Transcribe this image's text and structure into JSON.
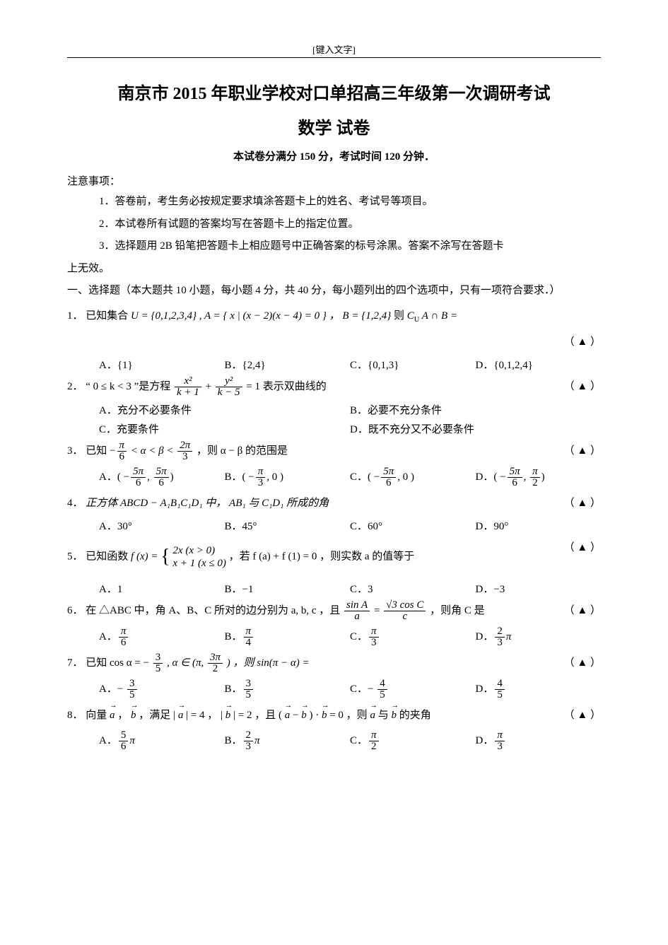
{
  "header": {
    "note": "[键入文字]"
  },
  "title": {
    "main": "南京市 2015 年职业学校对口单招高三年级第一次调研考试",
    "sub": "数学 试卷",
    "info": "本试卷分满分 150 分，考试时间 120 分钟．"
  },
  "notice": {
    "heading": "注意事项：",
    "lines": [
      "1．答卷前，考生务必按规定要求填涂答题卡上的姓名、考试号等项目。",
      "2．本试卷所有试题的答案均写在答题卡上的指定位置。",
      "3．选择题用 2B 铅笔把答题卡上相应题号中正确答案的标号涂黑。答案不涂写在答题卡"
    ],
    "cont": "上无效。"
  },
  "section": {
    "heading": "一、选择题（本大题共 10 小题，每小题 4 分，共 40 分，每小题列出的四个选项中，只有一项符合要求．）"
  },
  "marker": "（ ▲ ）",
  "q1": {
    "n": "1．",
    "pre": "已知集合",
    "set": "U = {0,1,2,3,4} , A = { x | (x − 2)(x − 4) = 0 } ，  B = {1,2,4}",
    "tail": " 则 ",
    "expr": "C_U A ∩ B =",
    "A": "A．{1}",
    "B": "B．{2,4}",
    "C": "C．{0,1,3}",
    "D": "D．{0,1,2,4}"
  },
  "q2": {
    "n": "2．",
    "pre": "“ 0 ≤ k < 3 ”是方程 ",
    "tail": " 表示双曲线的",
    "f1n": "x²",
    "f1d": "k + 1",
    "f2n": "y²",
    "f2d": "k − 5",
    "eq": " = 1",
    "A": "A．充分不必要条件",
    "B": "B．必要不充分条件",
    "C": "C．充要条件",
    "D": "D．既不充分又不必要条件"
  },
  "q3": {
    "n": "3．",
    "pre": "已知 ",
    "rng_a": "π",
    "rng_b": "6",
    "rng_c": "2π",
    "rng_d": "3",
    "mid": " ，则 α − β 的范围是",
    "A_l": "5π",
    "A_ld": "6",
    "A_r": "5π",
    "A_rd": "6",
    "B_l": "π",
    "B_ld": "3",
    "C_l": "5π",
    "C_ld": "6",
    "D_l": "5π",
    "D_ld": "6",
    "D_r": "π",
    "D_rd": "2",
    "Alab": "A．",
    "Blab": "B．",
    "Clab": "C．",
    "Dlab": "D．"
  },
  "q4": {
    "n": "4．",
    "stem": "正方体 ABCD − A₁B₁C₁D₁ 中， AB₁ 与 C₁D₁ 所成的角",
    "A": "A．30°",
    "B": "B．45°",
    "C": "C．60°",
    "D": "D．90°"
  },
  "q5": {
    "n": "5．",
    "pre": "已知函数 ",
    "fx": "f (x) = ",
    "c1": "2x (x > 0)",
    "c2": "x + 1 (x ≤ 0)",
    "mid": " ，若 f (a) + f (1) = 0 ，则实数 a 的值等于",
    "A": "A．1",
    "B": "B．−1",
    "C": "C．3",
    "D": "D．−3"
  },
  "q6": {
    "n": "6．",
    "pre": "在 △ABC 中，角 A、B、C 所对的边分别为 a, b, c ，且 ",
    "f1n": "sin A",
    "f1d": "a",
    "f2n": "√3 cos C",
    "f2d": "c",
    "tail": " ，则角 C 是",
    "A": "A．",
    "Afn": "π",
    "Afd": "6",
    "B": "B．",
    "Bfn": "π",
    "Bfd": "4",
    "C": "C．",
    "Cfn": "π",
    "Cfd": "3",
    "D": "D．",
    "Dfn": "2",
    "Dfd": "3",
    "Dpi": "π"
  },
  "q7": {
    "n": "7．",
    "pre": "已知 cos α = − ",
    "f1n": "3",
    "f1d": "5",
    "mid": " , α ∈ (π, ",
    "f2n": "3π",
    "f2d": "2",
    "mid2": " ) ，则 sin(π − α) =",
    "A": "A．− ",
    "Afn": "3",
    "Afd": "5",
    "B": "B．",
    "Bfn": "3",
    "Bfd": "5",
    "C": "C．− ",
    "Cfn": "4",
    "Cfd": "5",
    "D": "D．",
    "Dfn": "4",
    "Dfd": "5"
  },
  "q8": {
    "n": "8．",
    "pre": "向量 ",
    "a": "a",
    "b": "b",
    "mid1": " ，满足 | ",
    "mid2": " | = 4 ， | ",
    "mid3": " | = 2 ，且 ( ",
    "mid4": " − ",
    "mid5": " ) · ",
    "mid6": " = 0 ，则 ",
    "mid7": " 与 ",
    "mid8": " 的夹角",
    "A": "A．",
    "Afn": "5",
    "Afd": "6",
    "Api": "π",
    "B": "B．",
    "Bfn": "2",
    "Bfd": "3",
    "Bpi": "π",
    "C": "C．",
    "Cfn": "π",
    "Cfd": "2",
    "D": "D．",
    "Dfn": "π",
    "Dfd": "3"
  }
}
